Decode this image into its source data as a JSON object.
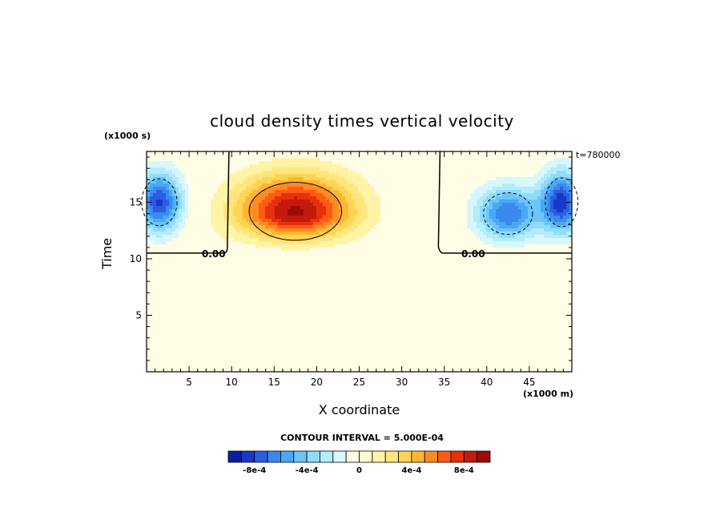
{
  "chart_data": {
    "type": "heatmap",
    "title": "cloud density times vertical velocity",
    "xlabel": "X coordinate",
    "ylabel": "Time",
    "x_unit": "(x1000 m)",
    "y_unit": "(x1000 s)",
    "time_label": "t=780000",
    "contour_interval_label": "CONTOUR INTERVAL = 5.000E-04",
    "xlim": [
      0,
      50
    ],
    "ylim": [
      0,
      19.5
    ],
    "x_ticks": [
      5,
      10,
      15,
      20,
      25,
      30,
      35,
      40,
      45
    ],
    "y_ticks": [
      5,
      10,
      15
    ],
    "zero_contour_labels": [
      "0.00",
      "0.00"
    ],
    "colorbar": {
      "levels": [
        -0.00095,
        -0.00085,
        -0.00075,
        -0.00065,
        -0.00055,
        -0.00045,
        -0.00035,
        -0.00025,
        -0.00015,
        -5e-05,
        5e-05,
        0.00015,
        0.00025,
        0.00035,
        0.00045,
        0.00055,
        0.00065,
        0.00075,
        0.00085,
        0.00095
      ],
      "colors": [
        "#0a1fa0",
        "#1838c8",
        "#2a5ee0",
        "#3a8aee",
        "#4aa8f5",
        "#6cc4fa",
        "#8fdcfc",
        "#b5ecfd",
        "#d6f7fe",
        "#fffde5",
        "#fffbcf",
        "#fff3a6",
        "#ffe67c",
        "#ffd454",
        "#ffb534",
        "#ff8c22",
        "#ff5a16",
        "#e8300f",
        "#c41a0c",
        "#9b0b08"
      ],
      "tick_labels": [
        "-8e-4",
        "-4e-4",
        "0",
        "4e-4",
        "8e-4"
      ],
      "tick_values": [
        -0.0008,
        -0.0004,
        0,
        0.0004,
        0.0008
      ]
    },
    "features": [
      {
        "kind": "negative",
        "x": 1.5,
        "y": 15.0,
        "sx": 2.6,
        "sy": 2.6,
        "amp": -0.00082
      },
      {
        "kind": "positive",
        "x": 17.5,
        "y": 14.2,
        "sx": 6.8,
        "sy": 3.2,
        "amp": 0.00092
      },
      {
        "kind": "negative",
        "x": 42.5,
        "y": 14.0,
        "sx": 3.6,
        "sy": 2.3,
        "amp": -0.0007
      },
      {
        "kind": "negative",
        "x": 48.8,
        "y": 15.0,
        "sx": 2.4,
        "sy": 2.7,
        "amp": -0.00085
      }
    ],
    "zero_contour": {
      "x_left": 9.5,
      "x_right": 34.5,
      "y_base": 10.5
    }
  }
}
